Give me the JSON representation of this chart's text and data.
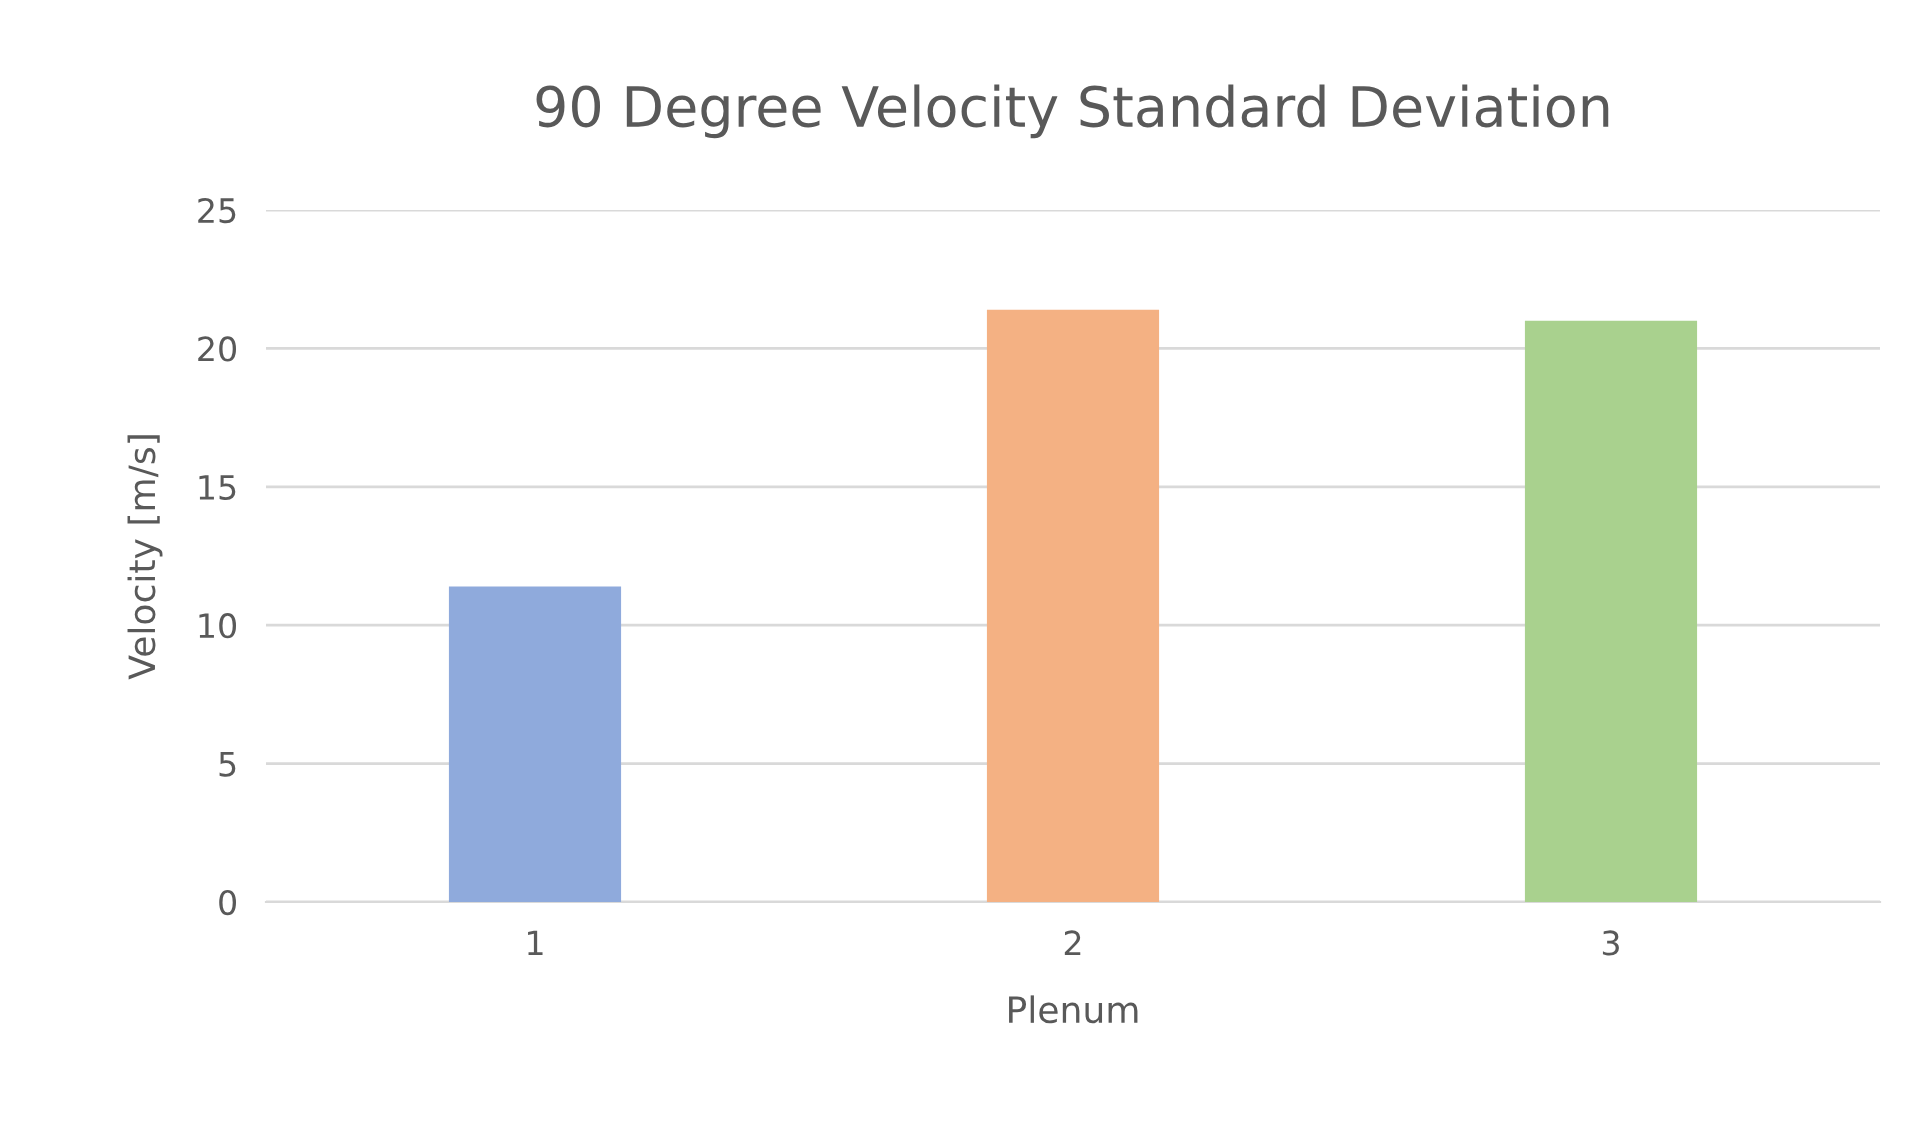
{
  "chart_data": {
    "type": "bar",
    "title": "90 Degree Velocity Standard Deviation",
    "xlabel": "Plenum",
    "ylabel": "Velocity [m/s]",
    "categories": [
      "1",
      "2",
      "3"
    ],
    "values": [
      11.4,
      21.4,
      21.0
    ],
    "colors": [
      "#8faadc",
      "#f4b183",
      "#a9d18e"
    ],
    "ylim": [
      0,
      25
    ],
    "yticks": [
      0,
      5,
      10,
      15,
      20,
      25
    ],
    "grid": "y",
    "legend": false
  }
}
